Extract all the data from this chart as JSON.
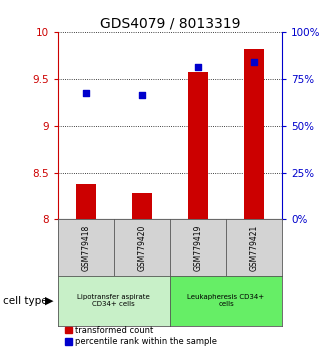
{
  "title": "GDS4079 / 8013319",
  "samples": [
    "GSM779418",
    "GSM779420",
    "GSM779419",
    "GSM779421"
  ],
  "bar_values": [
    8.38,
    8.28,
    9.57,
    9.82
  ],
  "bar_bottom": 8.0,
  "scatter_values": [
    9.35,
    9.33,
    9.63,
    9.68
  ],
  "bar_color": "#cc0000",
  "scatter_color": "#0000cc",
  "ylim_left": [
    8.0,
    10.0
  ],
  "ylim_right": [
    0,
    100
  ],
  "yticks_left": [
    8.0,
    8.5,
    9.0,
    9.5,
    10.0
  ],
  "yticks_right": [
    0,
    25,
    50,
    75,
    100
  ],
  "groups": [
    {
      "label": "Lipotransfer aspirate\nCD34+ cells",
      "color": "#c8f0c8",
      "indices": [
        0,
        1
      ]
    },
    {
      "label": "Leukapheresis CD34+\ncells",
      "color": "#66ee66",
      "indices": [
        2,
        3
      ]
    }
  ],
  "cell_type_label": "cell type",
  "legend_bar_label": "transformed count",
  "legend_scatter_label": "percentile rank within the sample",
  "background_color": "#ffffff",
  "title_fontsize": 10,
  "axis_fontsize": 7.5,
  "tick_fontsize": 7.5,
  "sample_box_color": "#d3d3d3",
  "sample_box_edgecolor": "#555555"
}
